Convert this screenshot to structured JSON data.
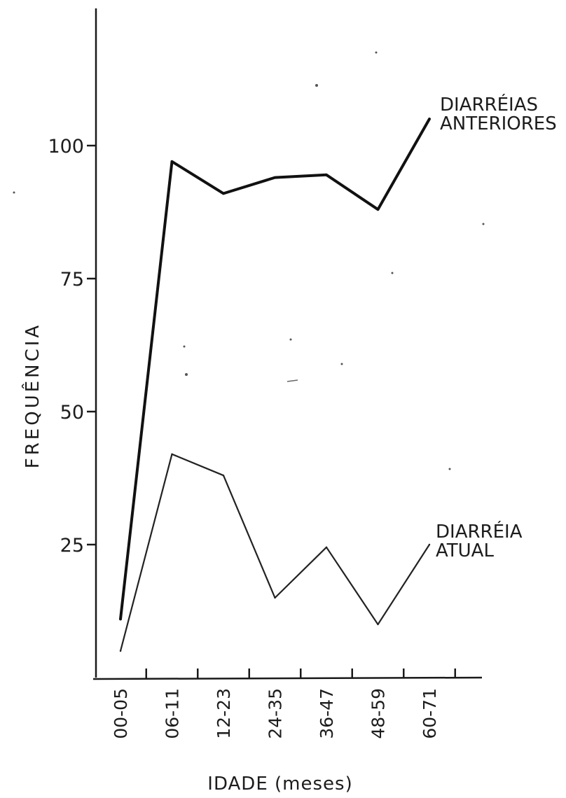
{
  "chart_data": {
    "type": "line",
    "title": "",
    "xlabel": "IDADE (meses)",
    "ylabel": "FREQUÊNCIA",
    "categories": [
      "00-05",
      "06-11",
      "12-23",
      "24-35",
      "36-47",
      "48-59",
      "60-71"
    ],
    "y_ticks": [
      "25",
      "50",
      "75",
      "100"
    ],
    "ylim": [
      0,
      122
    ],
    "grid": false,
    "series": [
      {
        "name_lines": [
          "DIARRÉIAS",
          "ANTERIORES"
        ],
        "values": [
          11,
          97,
          91,
          94,
          94.5,
          88,
          105
        ],
        "stroke": "#111111"
      },
      {
        "name_lines": [
          "DIARRÉIA",
          "ATUAL"
        ],
        "values": [
          5,
          42,
          38,
          15,
          24.5,
          10,
          25
        ],
        "stroke": "#222222"
      }
    ]
  }
}
